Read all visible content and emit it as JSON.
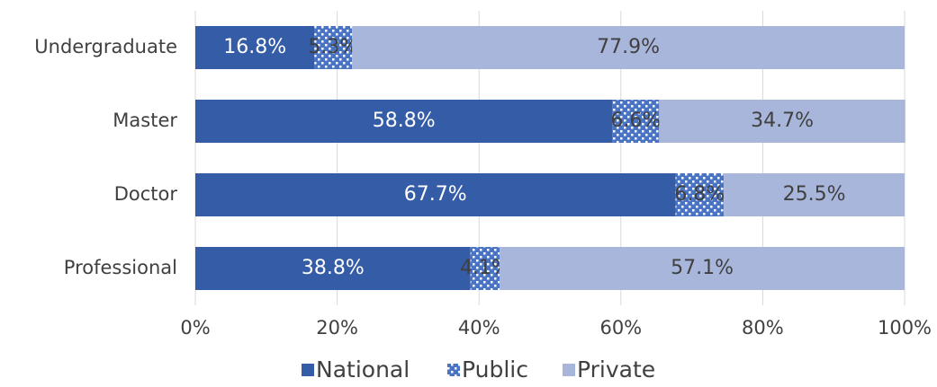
{
  "chart_data": {
    "type": "stacked-bar-horizontal",
    "categories": [
      "Undergraduate",
      "Master",
      "Doctor",
      "Professional"
    ],
    "series": [
      {
        "name": "National",
        "color": "#355ca6",
        "values": [
          16.8,
          58.8,
          67.7,
          38.8
        ],
        "value_labels": [
          "16.8%",
          "58.8%",
          "67.7%",
          "38.8%"
        ]
      },
      {
        "name": "Public",
        "color": "#4a74c2",
        "pattern": "checkered",
        "values": [
          5.3,
          6.6,
          6.8,
          4.1
        ],
        "value_labels": [
          "5.3%",
          "6.6%",
          "6.8%",
          "4.1%"
        ]
      },
      {
        "name": "Private",
        "color": "#a9b6dc",
        "values": [
          77.9,
          34.7,
          25.5,
          57.1
        ],
        "value_labels": [
          "77.9%",
          "34.7%",
          "25.5%",
          "57.1%"
        ]
      }
    ],
    "xlim": [
      0,
      100
    ],
    "xticks": [
      {
        "value": 0,
        "label": "0%"
      },
      {
        "value": 20,
        "label": "20%"
      },
      {
        "value": 40,
        "label": "40%"
      },
      {
        "value": 60,
        "label": "60%"
      },
      {
        "value": 80,
        "label": "80%"
      },
      {
        "value": 100,
        "label": "100%"
      }
    ],
    "grid": true,
    "legend": "bottom"
  }
}
